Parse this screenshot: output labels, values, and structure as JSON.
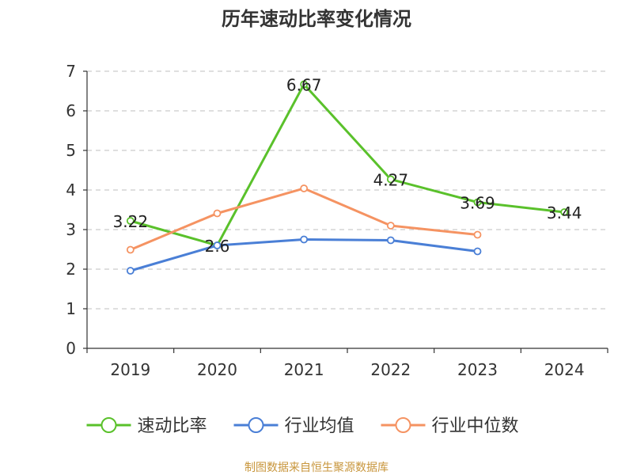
{
  "chart_data": {
    "type": "line",
    "title": "历年速动比率变化情况",
    "categories": [
      "2019",
      "2020",
      "2021",
      "2022",
      "2023",
      "2024"
    ],
    "ylim": [
      0,
      7
    ],
    "yticks": [
      0,
      1,
      2,
      3,
      4,
      5,
      6,
      7
    ],
    "xlabel": "",
    "ylabel": "",
    "grid": true,
    "legend_position": "bottom",
    "series": [
      {
        "name": "速动比率",
        "color": "#5ac12b",
        "values": [
          3.22,
          2.6,
          6.67,
          4.27,
          3.69,
          3.44
        ],
        "labels": [
          "3.22",
          "2.6",
          "6.67",
          "4.27",
          "3.69",
          "3.44"
        ],
        "show_labels": true
      },
      {
        "name": "行业均值",
        "color": "#4a7fd6",
        "values": [
          1.96,
          2.6,
          2.75,
          2.73,
          2.45,
          null
        ],
        "show_labels": false
      },
      {
        "name": "行业中位数",
        "color": "#f59362",
        "values": [
          2.49,
          3.41,
          4.04,
          3.1,
          2.87,
          null
        ],
        "show_labels": false
      }
    ]
  },
  "source": "制图数据来自恒生聚源数据库"
}
